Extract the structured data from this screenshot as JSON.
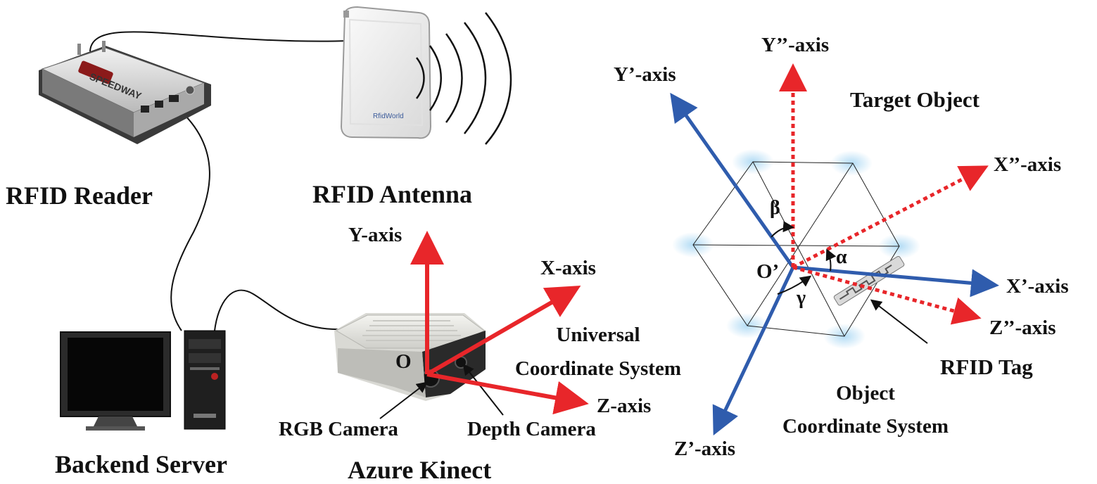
{
  "devices": {
    "reader_label": "RFID Reader",
    "antenna_label": "RFID Antenna",
    "server_label": "Backend Server",
    "kinect_label": "Azure Kinect",
    "rgb_camera_label": "RGB Camera",
    "depth_camera_label": "Depth Camera",
    "reader_brand": "SPEEDWAY",
    "antenna_brand": "RfidWorld"
  },
  "universal": {
    "origin": "O",
    "x_axis": "X-axis",
    "y_axis": "Y-axis",
    "z_axis": "Z-axis",
    "system_line1": "Universal",
    "system_line2": "Coordinate System"
  },
  "object": {
    "origin": "O’",
    "x1_axis": "X’-axis",
    "y1_axis": "Y’-axis",
    "z1_axis": "Z’-axis",
    "x2_axis": "X’’-axis",
    "y2_axis": "Y’’-axis",
    "z2_axis": "Z’’-axis",
    "alpha": "α",
    "beta": "β",
    "gamma": "γ",
    "target_label": "Target Object",
    "tag_label": "RFID Tag",
    "system_line1": "Object",
    "system_line2": "Coordinate System"
  },
  "colors": {
    "red_axis": "#e8262a",
    "blue_axis": "#2f5cad",
    "text": "#111111"
  }
}
